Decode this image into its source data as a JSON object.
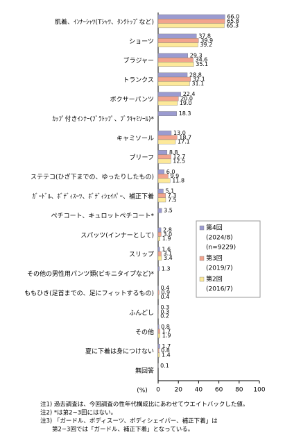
{
  "chart_data": {
    "type": "hbar",
    "categories": [
      "肌着、ｲﾝﾅｰｼｬﾂ(Tｼｬﾂ、ﾀﾝｸﾄｯﾌﾟなど)",
      "ショーツ",
      "ブラジャー",
      "トランクス",
      "ボクサーパンツ",
      "ｶｯﾌﾟ付きｲﾝﾅｰ(ﾌﾞﾗﾄｯﾌﾟ、ﾌﾞﾗｷｬﾐｿｰﾙ)*",
      "キャミソール",
      "ブリーフ",
      "ステテコ(ひざ下までの、ゆったりしたもの)",
      "ｶﾞｰﾄﾞﾙ、ﾎﾞﾃﾞｨｽｰﾂ、ﾎﾞﾃﾞｨｼｪｲﾊﾟｰ、補正下着",
      "ペチコート、キュロットペチコート*",
      "スパッツ(インナーとして)",
      "スリップ",
      "その他の男性用パンツ類(ビキニタイプなど)*",
      "ももひき(足首までの、足にフィットするもの)",
      "ふんどし",
      "その他",
      "夏に下着は身につけない",
      "無回答"
    ],
    "series": [
      {
        "name": "第4回",
        "detail": [
          "(2024/8)",
          "(n=9229)"
        ],
        "color": "#9b9bd0",
        "values": [
          66.0,
          37.8,
          29.3,
          28.8,
          22.4,
          18.3,
          13.0,
          8.8,
          6.0,
          5.1,
          3.5,
          2.8,
          1.6,
          1.3,
          0.4,
          0.3,
          0.8,
          1.7,
          0.1
        ],
        "value_labels": [
          "66.0",
          "37.8",
          "29.3",
          "28.8",
          "22.4",
          "18.3",
          "13.0",
          "8.8",
          "6.0",
          "5.1",
          "3.5",
          "2.8",
          "1.6",
          "1.3",
          "0.4",
          "0.3",
          "0.8",
          "1.7",
          "0.1"
        ]
      },
      {
        "name": "第3回",
        "detail": [
          "(2019/7)"
        ],
        "color": "#f2a48e",
        "values": [
          65.8,
          39.9,
          34.6,
          32.1,
          20.0,
          null,
          18.7,
          12.7,
          9.9,
          7.3,
          null,
          3.0,
          3.1,
          null,
          0.9,
          0.3,
          1.7,
          0.8,
          null
        ],
        "value_labels": [
          "65.8",
          "39.9",
          "34.6",
          "32.1",
          "20.0",
          null,
          "18.7",
          "12.7",
          "9.9",
          "7.3",
          null,
          "3.0",
          "3.1",
          null,
          "0.9",
          "0.3",
          "1.7",
          "0.8",
          null
        ]
      },
      {
        "name": "第2回",
        "detail": [
          "(2016/7)"
        ],
        "color": "#fde99a",
        "values": [
          65.3,
          39.2,
          35.1,
          31.1,
          19.0,
          null,
          17.1,
          12.5,
          11.8,
          7.5,
          null,
          1.9,
          3.4,
          null,
          0.4,
          0.2,
          1.9,
          1.4,
          null
        ],
        "value_labels": [
          "65.3",
          "39.2",
          "35.1",
          "31.1",
          "19.0",
          null,
          "17.1",
          "12.5",
          "11.8",
          "7.5",
          null,
          "1.9",
          "3.4",
          null,
          "0.4",
          "0.2",
          "1.9",
          "1.4",
          null
        ]
      }
    ],
    "xlim": [
      0,
      100
    ],
    "xticks": [
      0,
      20,
      40,
      60,
      80,
      100
    ],
    "x_label": "(%)",
    "grid": false,
    "notes": [
      "注1) 過去調査は、今回調査の性年代構成比にあわせてウエイトバックした値。",
      "注2) *は第2~3回にはない。",
      "注3) 「ガードル、ボディスーツ、ボディシェイパー、補正下着」は",
      "　　第2~3回では「ガードル、補正下着」となっている。"
    ]
  }
}
